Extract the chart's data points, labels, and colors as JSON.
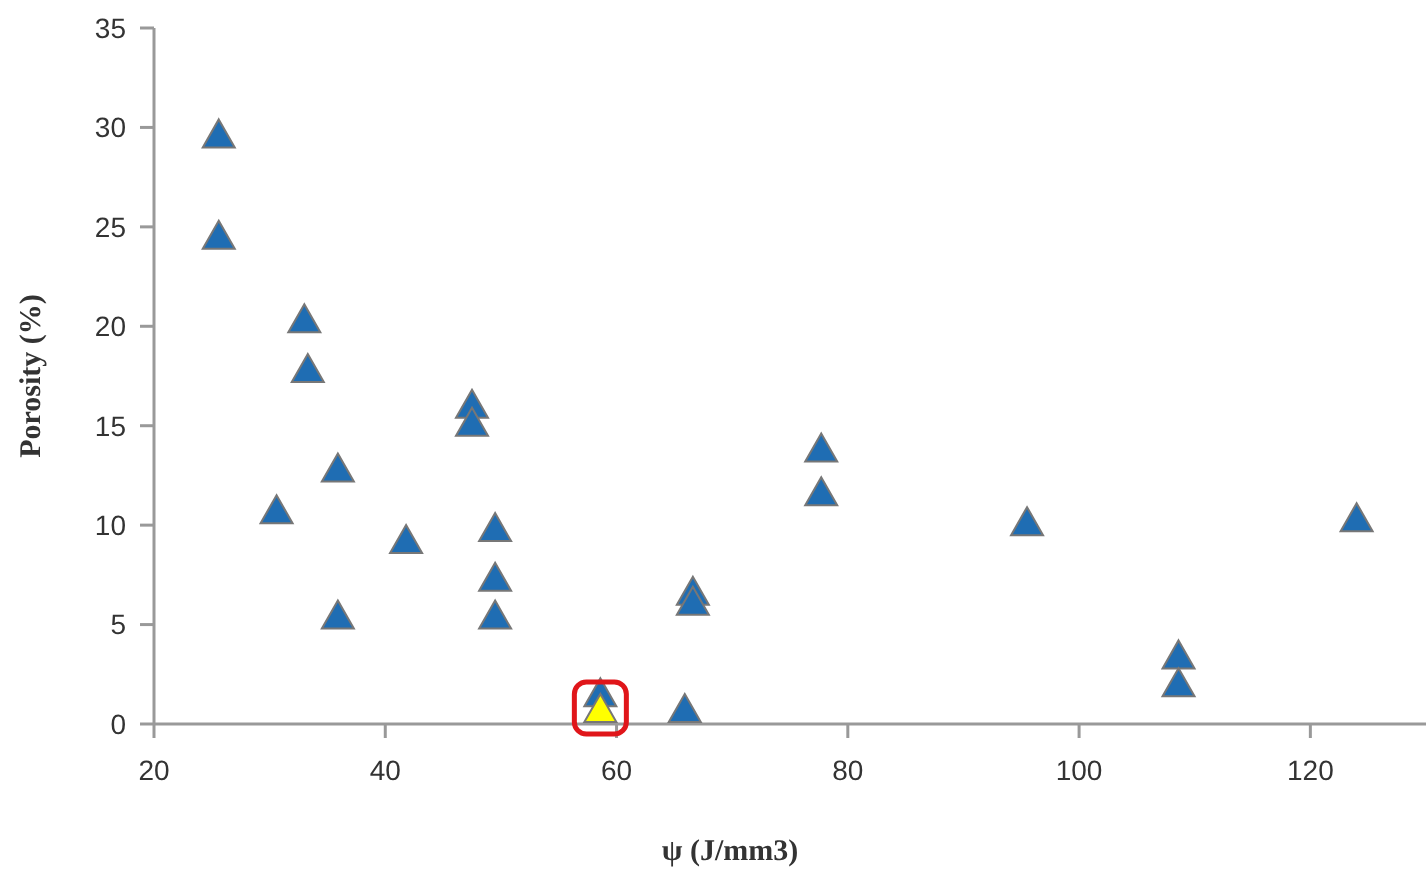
{
  "chart_data": {
    "type": "scatter",
    "xlabel": "ψ (J/mm3)",
    "ylabel": "Porosity (%)",
    "xlim": [
      20,
      130
    ],
    "xticks": [
      20,
      40,
      60,
      80,
      100,
      120
    ],
    "ylim": [
      0,
      35
    ],
    "yticks": [
      0,
      5,
      10,
      15,
      20,
      25,
      30,
      35
    ],
    "grid": false,
    "marker": "triangle",
    "series": [
      {
        "color": "#1f6db3",
        "x": [
          25.6,
          25.6,
          33.0,
          33.3,
          30.6,
          35.9,
          35.9,
          41.8,
          47.5,
          47.5,
          49.5,
          49.5,
          49.5,
          58.6,
          65.9,
          66.6,
          66.6,
          77.7,
          77.7,
          95.5,
          108.6,
          108.6,
          124.0
        ],
        "values": [
          29.6,
          24.5,
          20.3,
          17.8,
          10.7,
          12.8,
          5.4,
          9.2,
          16.0,
          15.1,
          9.8,
          7.3,
          5.4,
          1.5,
          0.7,
          6.6,
          6.1,
          13.8,
          11.6,
          10.1,
          3.4,
          2.0,
          10.3
        ]
      },
      {
        "color": "#ffff00",
        "x": [
          58.6
        ],
        "values": [
          0.7
        ]
      }
    ]
  }
}
